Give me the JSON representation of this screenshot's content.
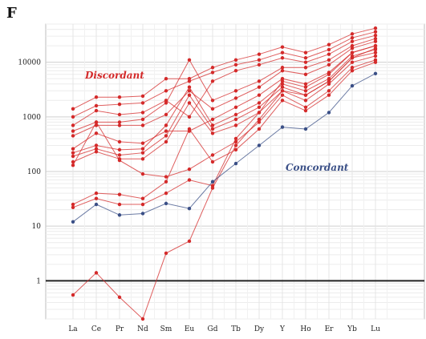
{
  "panel_label": "F",
  "colors": {
    "discordant": "#d42a2a",
    "concordant": "#3a4f86",
    "reference_line": "#222222",
    "grid": "#d9d9d9"
  },
  "chart_data": {
    "type": "line",
    "title": "",
    "xlabel": "",
    "ylabel": "",
    "yscale": "log",
    "ylim": [
      0.2,
      50000
    ],
    "yticks": [
      1,
      10,
      100,
      1000,
      10000
    ],
    "ytick_labels": [
      "1",
      "10",
      "100",
      "1000",
      "10000"
    ],
    "reference_line": 1,
    "grid": true,
    "categories": [
      "La",
      "Ce",
      "Pr",
      "Nd",
      "Sm",
      "Eu",
      "Gd",
      "Tb",
      "Dy",
      "Y",
      "Ho",
      "Er",
      "Yb",
      "Lu"
    ],
    "annotations": [
      {
        "text": "Discordant",
        "group": "discordant"
      },
      {
        "text": "Concordant",
        "group": "concordant"
      }
    ],
    "series": [
      {
        "group": "discordant",
        "values": [
          1400,
          2300,
          2300,
          2400,
          5000,
          5000,
          8000,
          11000,
          14000,
          19000,
          15000,
          21000,
          33000,
          42000
        ]
      },
      {
        "group": "discordant",
        "values": [
          1000,
          1600,
          1700,
          1800,
          3000,
          4500,
          6500,
          9000,
          11000,
          15000,
          12000,
          17000,
          28000,
          36000
        ]
      },
      {
        "group": "discordant",
        "values": [
          700,
          1300,
          1100,
          1200,
          2000,
          1000,
          4500,
          7000,
          9000,
          12000,
          10000,
          14000,
          24000,
          31000
        ]
      },
      {
        "group": "discordant",
        "values": [
          550,
          800,
          800,
          900,
          1800,
          11000,
          2000,
          3000,
          4500,
          8000,
          8000,
          11000,
          20000,
          27000
        ]
      },
      {
        "group": "discordant",
        "values": [
          450,
          700,
          700,
          700,
          1100,
          3000,
          1400,
          2200,
          3500,
          7000,
          6000,
          9000,
          18000,
          24000
        ]
      },
      {
        "group": "discordant",
        "values": [
          260,
          500,
          350,
          330,
          550,
          550,
          900,
          1500,
          2500,
          5000,
          4000,
          6500,
          15000,
          20000
        ]
      },
      {
        "group": "discordant",
        "values": [
          220,
          300,
          250,
          260,
          700,
          3500,
          700,
          1100,
          1800,
          4000,
          3000,
          5000,
          13000,
          17000
        ]
      },
      {
        "group": "discordant",
        "values": [
          190,
          260,
          200,
          220,
          450,
          2500,
          600,
          900,
          1500,
          3500,
          2500,
          4500,
          12000,
          15000
        ]
      },
      {
        "group": "discordant",
        "values": [
          150,
          230,
          170,
          170,
          350,
          1800,
          500,
          700,
          1200,
          3000,
          2000,
          4000,
          10000,
          13000
        ]
      },
      {
        "group": "discordant",
        "values": [
          130,
          800,
          160,
          90,
          80,
          110,
          200,
          350,
          800,
          2500,
          1500,
          3000,
          8000,
          11000
        ]
      },
      {
        "group": "discordant",
        "values": [
          25,
          40,
          38,
          32,
          65,
          600,
          150,
          250,
          600,
          2000,
          1300,
          2500,
          7000,
          10000
        ]
      },
      {
        "group": "discordant",
        "values": [
          22,
          32,
          25,
          25,
          40,
          70,
          55,
          400,
          1200,
          4500,
          3500,
          6000,
          15000,
          20000
        ]
      },
      {
        "group": "discordant",
        "values": [
          0.55,
          1.4,
          0.5,
          0.2,
          3.2,
          5.3,
          50,
          300,
          900,
          3000,
          2500,
          4500,
          12000,
          18000
        ]
      },
      {
        "group": "concordant",
        "values": [
          12,
          25,
          16,
          17,
          26,
          21,
          65,
          140,
          300,
          650,
          600,
          1200,
          3700,
          6200
        ]
      }
    ]
  }
}
